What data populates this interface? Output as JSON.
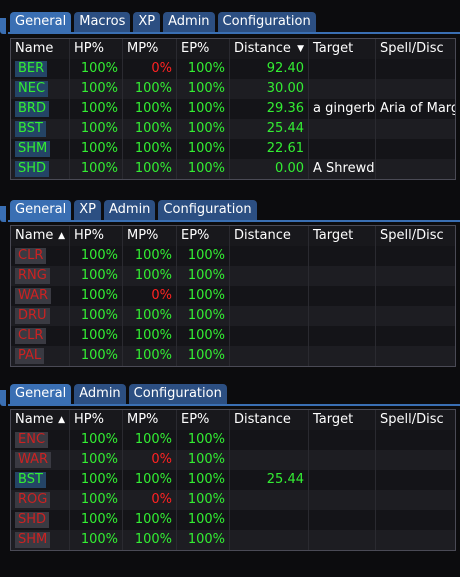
{
  "columns": [
    "Name",
    "HP%",
    "MP%",
    "EP%",
    "Distance",
    "Target",
    "Spell/Disc"
  ],
  "sort_icons": {
    "up": "▲",
    "down": "▼"
  },
  "panels": [
    {
      "tabs": [
        "General",
        "Macros",
        "XP",
        "Admin",
        "Configuration"
      ],
      "sort_col": 4,
      "sort_dir": "down",
      "rows": [
        {
          "name": "BER",
          "hp": "100%",
          "mp": "0%",
          "ep": "100%",
          "dist": "92.40",
          "target": "",
          "spell": "",
          "in_zone": true,
          "mp_low": true
        },
        {
          "name": "NEC",
          "hp": "100%",
          "mp": "100%",
          "ep": "100%",
          "dist": "30.00",
          "target": "",
          "spell": "",
          "in_zone": true,
          "mp_low": false
        },
        {
          "name": "BRD",
          "hp": "100%",
          "mp": "100%",
          "ep": "100%",
          "dist": "29.36",
          "target": "a gingerbr",
          "spell": "Aria of Marg",
          "in_zone": true,
          "mp_low": false
        },
        {
          "name": "BST",
          "hp": "100%",
          "mp": "100%",
          "ep": "100%",
          "dist": "25.44",
          "target": "",
          "spell": "",
          "in_zone": true,
          "mp_low": false
        },
        {
          "name": "SHM",
          "hp": "100%",
          "mp": "100%",
          "ep": "100%",
          "dist": "22.61",
          "target": "",
          "spell": "",
          "in_zone": true,
          "mp_low": false
        },
        {
          "name": "SHD",
          "hp": "100%",
          "mp": "100%",
          "ep": "100%",
          "dist": "0.00",
          "target": "A Shrewd",
          "spell": "",
          "in_zone": true,
          "mp_low": false
        }
      ]
    },
    {
      "tabs": [
        "General",
        "XP",
        "Admin",
        "Configuration"
      ],
      "sort_col": 0,
      "sort_dir": "up",
      "rows": [
        {
          "name": "CLR",
          "hp": "100%",
          "mp": "100%",
          "ep": "100%",
          "dist": "",
          "target": "",
          "spell": "",
          "in_zone": false,
          "mp_low": false
        },
        {
          "name": "RNG",
          "hp": "100%",
          "mp": "100%",
          "ep": "100%",
          "dist": "",
          "target": "",
          "spell": "",
          "in_zone": false,
          "mp_low": false
        },
        {
          "name": "WAR",
          "hp": "100%",
          "mp": "0%",
          "ep": "100%",
          "dist": "",
          "target": "",
          "spell": "",
          "in_zone": false,
          "mp_low": true
        },
        {
          "name": "DRU",
          "hp": "100%",
          "mp": "100%",
          "ep": "100%",
          "dist": "",
          "target": "",
          "spell": "",
          "in_zone": false,
          "mp_low": false
        },
        {
          "name": "CLR",
          "hp": "100%",
          "mp": "100%",
          "ep": "100%",
          "dist": "",
          "target": "",
          "spell": "",
          "in_zone": false,
          "mp_low": false
        },
        {
          "name": "PAL",
          "hp": "100%",
          "mp": "100%",
          "ep": "100%",
          "dist": "",
          "target": "",
          "spell": "",
          "in_zone": false,
          "mp_low": false
        }
      ]
    },
    {
      "tabs": [
        "General",
        "Admin",
        "Configuration"
      ],
      "sort_col": 0,
      "sort_dir": "up",
      "rows": [
        {
          "name": "ENC",
          "hp": "100%",
          "mp": "100%",
          "ep": "100%",
          "dist": "",
          "target": "",
          "spell": "",
          "in_zone": false,
          "mp_low": false
        },
        {
          "name": "WAR",
          "hp": "100%",
          "mp": "0%",
          "ep": "100%",
          "dist": "",
          "target": "",
          "spell": "",
          "in_zone": false,
          "mp_low": true
        },
        {
          "name": "BST",
          "hp": "100%",
          "mp": "100%",
          "ep": "100%",
          "dist": "25.44",
          "target": "",
          "spell": "",
          "in_zone": true,
          "mp_low": false
        },
        {
          "name": "ROG",
          "hp": "100%",
          "mp": "0%",
          "ep": "100%",
          "dist": "",
          "target": "",
          "spell": "",
          "in_zone": false,
          "mp_low": true
        },
        {
          "name": "SHD",
          "hp": "100%",
          "mp": "100%",
          "ep": "100%",
          "dist": "",
          "target": "",
          "spell": "",
          "in_zone": false,
          "mp_low": false
        },
        {
          "name": "SHM",
          "hp": "100%",
          "mp": "100%",
          "ep": "100%",
          "dist": "",
          "target": "",
          "spell": "",
          "in_zone": false,
          "mp_low": false
        }
      ]
    }
  ]
}
